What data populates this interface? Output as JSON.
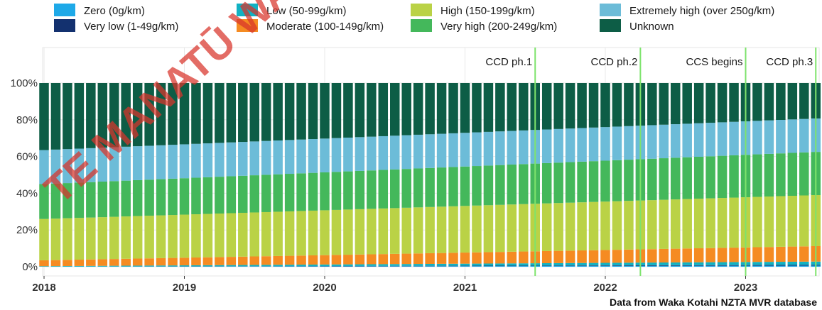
{
  "chart_data": {
    "type": "bar",
    "stacked": true,
    "percent": true,
    "x_start": "2018-01",
    "x_end": "2023-07",
    "x_step": "month",
    "xticks": [
      "2018",
      "2019",
      "2020",
      "2021",
      "2022",
      "2023"
    ],
    "yticks": [
      "0%",
      "20%",
      "40%",
      "60%",
      "80%",
      "100%"
    ],
    "ylim": [
      0,
      100
    ],
    "grid": true,
    "legend_position": "top",
    "series": [
      {
        "name": "Zero (0g/km)",
        "color": "#1ea9e8",
        "start": 0.0,
        "end": 0.6
      },
      {
        "name": "Very low (1-49g/km)",
        "color": "#13316f",
        "start": 0.0,
        "end": 0.4
      },
      {
        "name": "Low (50-99g/km)",
        "color": "#11b2c3",
        "start": 0.3,
        "end": 1.8
      },
      {
        "name": "Moderate (100-149g/km)",
        "color": "#f58b22",
        "start": 3.2,
        "end": 8.4
      },
      {
        "name": "High (150-199g/km)",
        "color": "#bad246",
        "start": 22.5,
        "end": 27.8
      },
      {
        "name": "Very high (200-249g/km)",
        "color": "#44b85b",
        "start": 19.0,
        "end": 23.5
      },
      {
        "name": "Extremely high (over 250g/km)",
        "color": "#6cbcd8",
        "start": 18.5,
        "end": 18.2
      },
      {
        "name": "Unknown",
        "color": "#0d5d46",
        "start": 36.5,
        "end": 19.3
      }
    ],
    "events": [
      {
        "label": "CCD ph.1",
        "date": "2021-07"
      },
      {
        "label": "CCD ph.2",
        "date": "2022-04"
      },
      {
        "label": "CCS begins",
        "date": "2023-01"
      },
      {
        "label": "CCD ph.3",
        "date": "2023-07"
      }
    ],
    "event_color": "#7ee36c",
    "caption": "Data from Waka Kotahi NZTA MVR database"
  },
  "watermark": "TE MANATŪ WAKA"
}
